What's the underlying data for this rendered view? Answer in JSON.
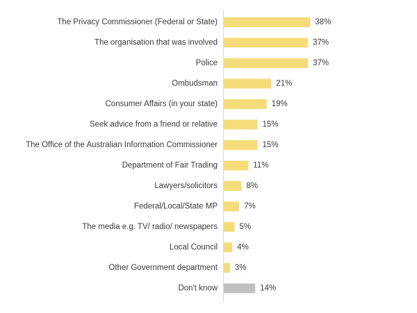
{
  "chart_data": {
    "type": "bar",
    "orientation": "horizontal",
    "title": "",
    "xlabel": "",
    "ylabel": "",
    "value_suffix": "%",
    "xlim": [
      0,
      100
    ],
    "grid": false,
    "categories": [
      "The Privacy Commissioner (Federal or State)",
      "The organisation that was involved",
      "Police",
      "Ombudsman",
      "Consumer Affairs (in your state)",
      "Seek advice from a friend or relative",
      "The Office of the Australian Information Commissioner",
      "Department of Fair Trading",
      "Lawyers/solicitors",
      "Federal/Local/State MP",
      "The media e.g. TV/ radio/ newspapers",
      "Local Council",
      "Other Government department",
      "Don't know"
    ],
    "values": [
      38,
      37,
      37,
      21,
      19,
      15,
      15,
      11,
      8,
      7,
      5,
      4,
      3,
      14
    ],
    "bar_colors": [
      "#f5dc78",
      "#f5dc78",
      "#f5dc78",
      "#f5dc78",
      "#f5dc78",
      "#f5dc78",
      "#f5dc78",
      "#f5dc78",
      "#f5dc78",
      "#f5dc78",
      "#f5dc78",
      "#f5dc78",
      "#f5dc78",
      "#c0c0c0"
    ],
    "axis_color": "#d9d9d9"
  }
}
